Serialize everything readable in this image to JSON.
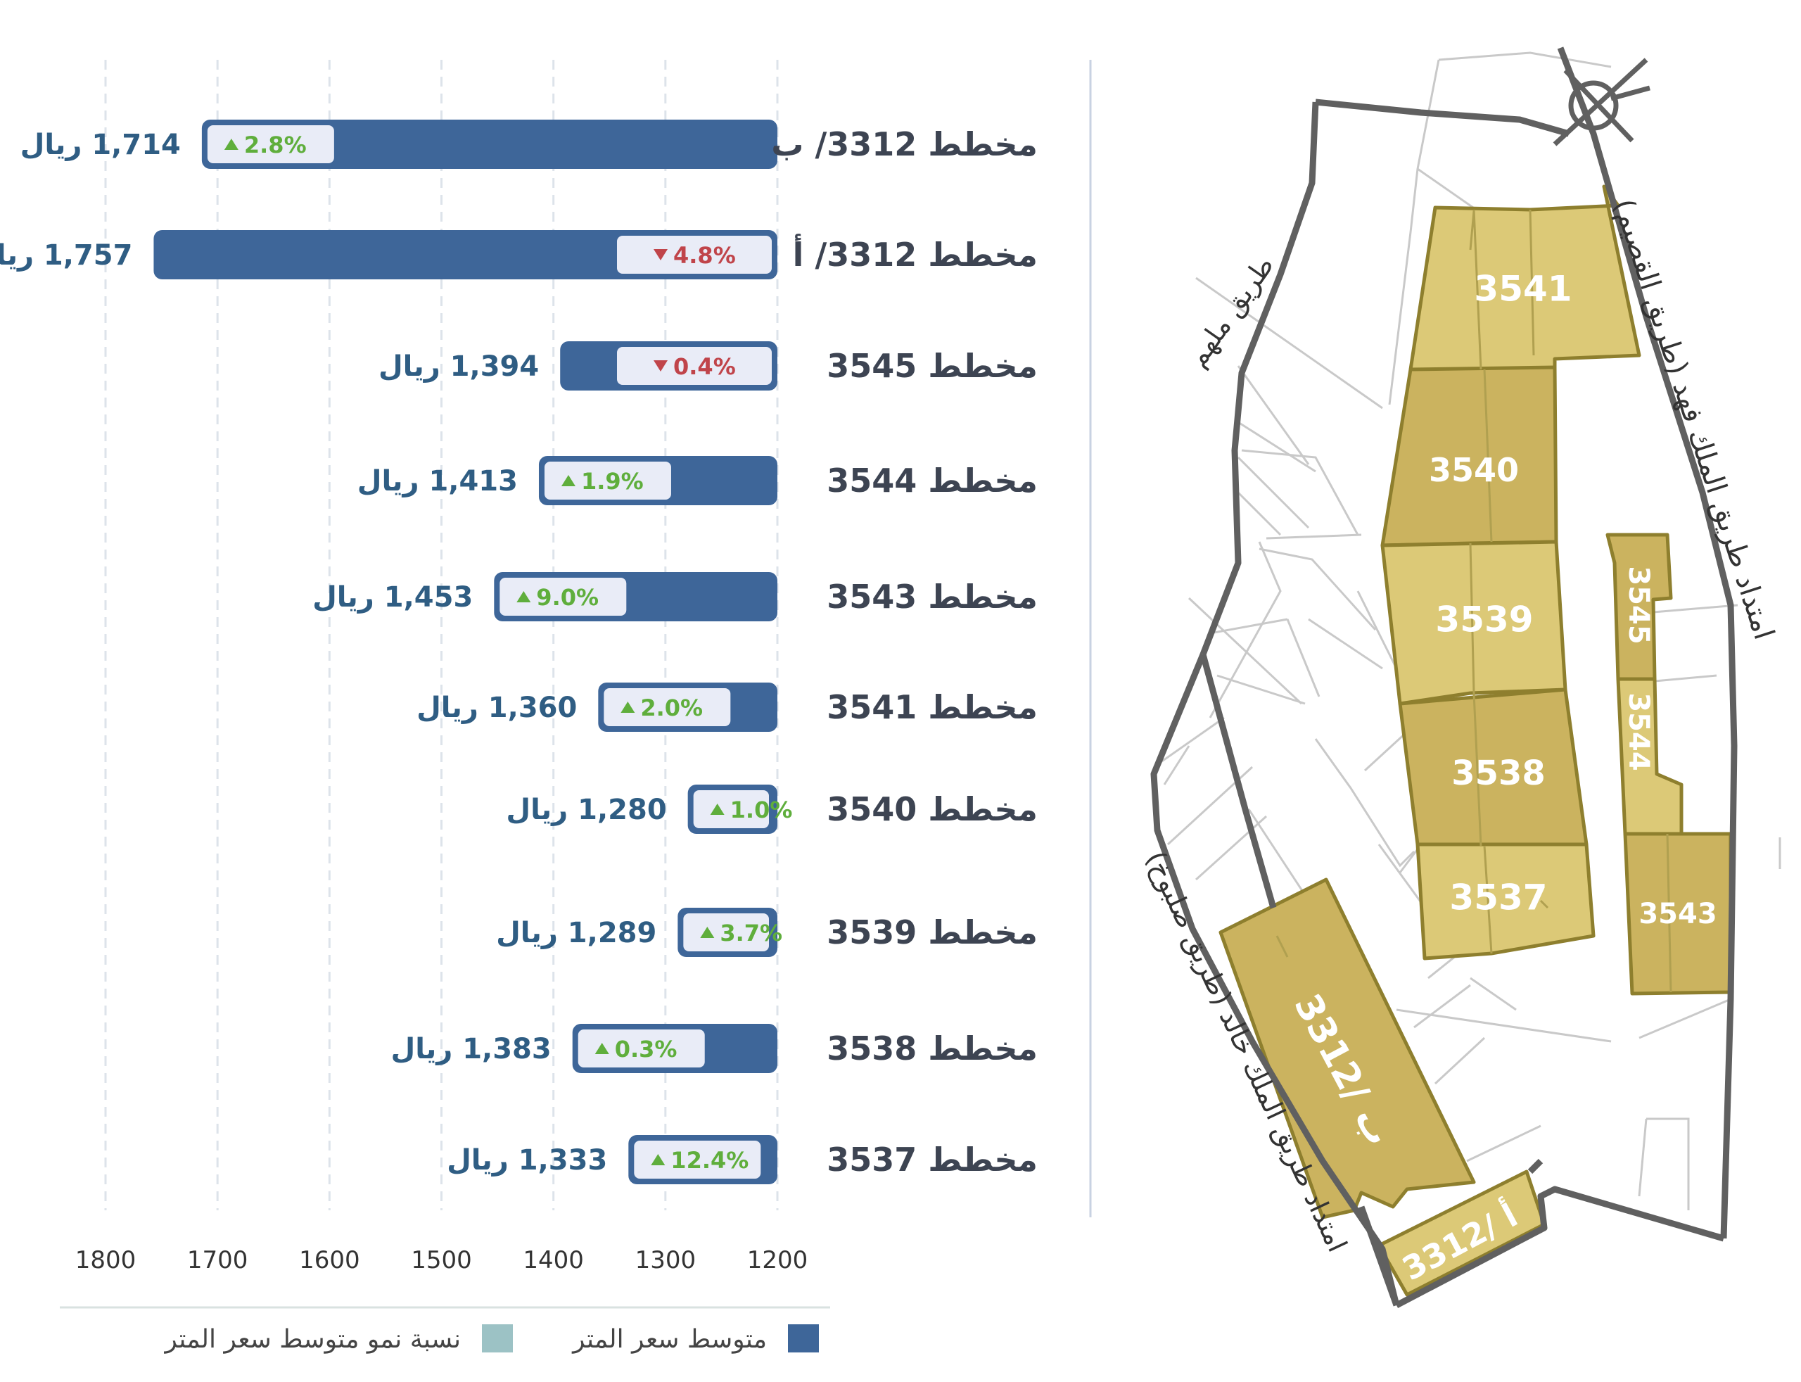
{
  "chart_data": {
    "type": "bar",
    "orientation": "horizontal",
    "x_axis": {
      "ticks": [
        1800,
        1700,
        1600,
        1500,
        1400,
        1300,
        1200
      ],
      "range": [
        1200,
        1800
      ],
      "direction": "right-to-left",
      "grid": "dashed-vertical"
    },
    "categories": [
      "مخطط 3312/ ب",
      "مخطط 3312/ أ",
      "مخطط 3545",
      "مخطط 3544",
      "مخطط 3543",
      "مخطط 3541",
      "مخطط 3540",
      "مخطط 3539",
      "مخطط 3538",
      "مخطط 3537"
    ],
    "series": [
      {
        "name": "متوسط سعر المتر",
        "color": "#3e6699",
        "values": [
          1714,
          1757,
          1394,
          1413,
          1453,
          1360,
          1280,
          1289,
          1383,
          1333
        ],
        "value_labels": [
          "1,714",
          "1,757",
          "1,394",
          "1,413",
          "1,453",
          "1,360",
          "1,280",
          "1,289",
          "1,383",
          "1,333"
        ]
      },
      {
        "name": "نسبة نمو متوسط سعر المتر",
        "color": "#9cc2c5",
        "growth_labels": [
          "2.8%",
          "4.8%",
          "0.4%",
          "1.9%",
          "9.0%",
          "2.0%",
          "1.0%",
          "3.7%",
          "0.3%",
          "12.4%"
        ],
        "directions": [
          "up",
          "down",
          "down",
          "up",
          "up",
          "up",
          "up",
          "up",
          "up",
          "up"
        ]
      }
    ],
    "currency": "ريال",
    "colors": {
      "up": "#5fae3c",
      "down": "#c0444a",
      "badge_bg": "#e9ecf7",
      "label": "#2f5d83",
      "category": "#3d4452"
    },
    "legend": {
      "placement": "bottom",
      "items": [
        {
          "label": "متوسط سعر المتر",
          "color": "#3e6699"
        },
        {
          "label": "نسبة نمو متوسط سعر المتر",
          "color": "#9cc2c5"
        }
      ]
    }
  },
  "map": {
    "plots": [
      {
        "label": "3541",
        "fill": "#dcc977"
      },
      {
        "label": "3540",
        "fill": "#cbb35f"
      },
      {
        "label": "3539",
        "fill": "#dcc977"
      },
      {
        "label": "3538",
        "fill": "#cbb35f"
      },
      {
        "label": "3537",
        "fill": "#dcc977"
      },
      {
        "label": "3545",
        "fill": "#cbb35f"
      },
      {
        "label": "3544",
        "fill": "#dcc977"
      },
      {
        "label": "3543",
        "fill": "#cbb35f"
      },
      {
        "label": "3312/ ب",
        "fill": "#cbb35f"
      },
      {
        "label": "3312/ أ",
        "fill": "#dcc977"
      }
    ],
    "roads": [
      {
        "label": "امتداد طريق الملك فهد (طريق القصيم)"
      },
      {
        "label": "طريق ملهم"
      },
      {
        "label": "امتداد طريق الملك خالد (طريق صلبوخ)"
      }
    ]
  }
}
